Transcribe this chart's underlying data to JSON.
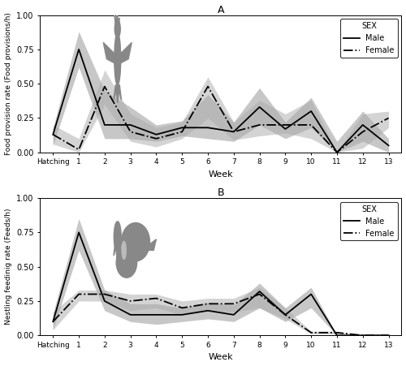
{
  "title_A": "A",
  "title_B": "B",
  "xlabel": "Week",
  "ylabel_A": "Food provision rate (Food provisions/h)",
  "ylabel_B": "Nestling feedinig rate (Feeds/h)",
  "x_ticks": [
    "Hatching",
    "1",
    "2",
    "3",
    "4",
    "5",
    "6",
    "7",
    "8",
    "9",
    "10",
    "11",
    "12",
    "13"
  ],
  "x_vals": [
    0,
    1,
    2,
    3,
    4,
    5,
    6,
    7,
    8,
    9,
    10,
    11,
    12,
    13
  ],
  "ylim": [
    0.0,
    1.0
  ],
  "yticks": [
    0.0,
    0.25,
    0.5,
    0.75,
    1.0
  ],
  "A_male_mean": [
    0.13,
    0.75,
    0.2,
    0.2,
    0.13,
    0.18,
    0.18,
    0.15,
    0.33,
    0.17,
    0.3,
    0.0,
    0.2,
    0.05
  ],
  "A_male_se_hi": [
    0.18,
    0.88,
    0.45,
    0.33,
    0.2,
    0.23,
    0.42,
    0.22,
    0.47,
    0.22,
    0.4,
    0.08,
    0.3,
    0.1
  ],
  "A_male_se_lo": [
    0.05,
    0.62,
    0.1,
    0.1,
    0.08,
    0.12,
    0.1,
    0.08,
    0.2,
    0.1,
    0.18,
    0.0,
    0.08,
    0.0
  ],
  "A_female_mean": [
    0.13,
    0.02,
    0.48,
    0.15,
    0.1,
    0.15,
    0.48,
    0.15,
    0.2,
    0.2,
    0.2,
    0.0,
    0.15,
    0.25
  ],
  "A_female_se_hi": [
    0.2,
    0.1,
    0.6,
    0.28,
    0.18,
    0.22,
    0.55,
    0.22,
    0.38,
    0.28,
    0.38,
    0.0,
    0.28,
    0.3
  ],
  "A_female_se_lo": [
    0.06,
    0.0,
    0.35,
    0.08,
    0.04,
    0.1,
    0.25,
    0.09,
    0.12,
    0.14,
    0.1,
    0.0,
    0.03,
    0.18
  ],
  "B_male_mean": [
    0.1,
    0.75,
    0.25,
    0.15,
    0.15,
    0.15,
    0.18,
    0.15,
    0.32,
    0.15,
    0.3,
    0.0,
    0.0,
    0.0
  ],
  "B_male_se_hi": [
    0.16,
    0.85,
    0.33,
    0.23,
    0.23,
    0.2,
    0.24,
    0.22,
    0.38,
    0.2,
    0.35,
    0.0,
    0.0,
    0.0
  ],
  "B_male_se_lo": [
    0.04,
    0.62,
    0.18,
    0.1,
    0.08,
    0.1,
    0.12,
    0.1,
    0.2,
    0.1,
    0.2,
    0.0,
    0.0,
    0.0
  ],
  "B_female_mean": [
    0.1,
    0.3,
    0.3,
    0.25,
    0.27,
    0.2,
    0.23,
    0.23,
    0.3,
    0.15,
    0.02,
    0.02,
    0.0,
    0.0
  ],
  "B_female_se_hi": [
    0.17,
    0.33,
    0.33,
    0.3,
    0.3,
    0.25,
    0.27,
    0.27,
    0.35,
    0.2,
    0.03,
    0.03,
    0.0,
    0.0
  ],
  "B_female_se_lo": [
    0.04,
    0.25,
    0.25,
    0.18,
    0.2,
    0.15,
    0.18,
    0.17,
    0.2,
    0.12,
    0.01,
    0.01,
    0.0,
    0.0
  ],
  "shade_color": "#aaaaaa",
  "male_color": "#000000",
  "female_color": "#555555",
  "bg_color": "#ffffff",
  "legend_title": "SEX"
}
